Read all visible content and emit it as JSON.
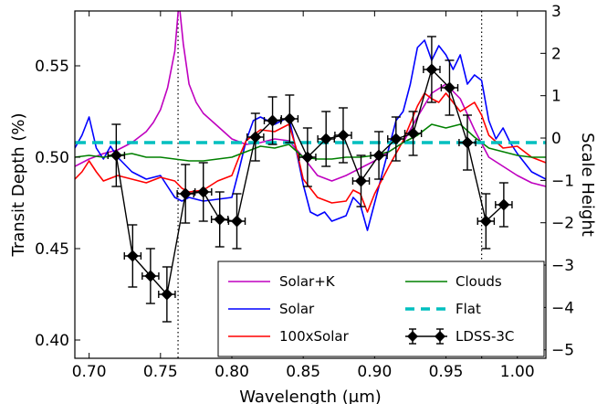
{
  "chart_data": {
    "type": "line",
    "xlabel": "Wavelength (μm)",
    "ylabel": "Transit Depth (%)",
    "ylabel_right": "Scale Height",
    "xlim": [
      0.69,
      1.02
    ],
    "ylim": [
      0.39,
      0.58
    ],
    "y2lim": [
      -5.2,
      3.0
    ],
    "x_ticks": [
      0.7,
      0.75,
      0.8,
      0.85,
      0.9,
      0.95,
      1.0
    ],
    "x_tick_labels": [
      "0.70",
      "0.75",
      "0.80",
      "0.85",
      "0.90",
      "0.95",
      "1.00"
    ],
    "y_ticks": [
      0.4,
      0.45,
      0.5,
      0.55
    ],
    "y_tick_labels": [
      "0.40",
      "0.45",
      "0.50",
      "0.55"
    ],
    "y2_ticks": [
      -5,
      -4,
      -3,
      -2,
      -1,
      0,
      1,
      2,
      3
    ],
    "y2_tick_labels": [
      "−5",
      "−4",
      "−3",
      "−2",
      "−1",
      "0",
      "1",
      "2",
      "3"
    ],
    "vlines": [
      0.7623,
      0.975
    ],
    "grid": false,
    "legend_position": "bottom-right",
    "series": [
      {
        "name": "Solar+K",
        "color": "#bf00bf",
        "style": "solid",
        "x": [
          0.69,
          0.7,
          0.71,
          0.72,
          0.73,
          0.74,
          0.745,
          0.75,
          0.755,
          0.76,
          0.763,
          0.766,
          0.77,
          0.775,
          0.78,
          0.79,
          0.8,
          0.81,
          0.82,
          0.83,
          0.84,
          0.85,
          0.86,
          0.87,
          0.88,
          0.89,
          0.9,
          0.91,
          0.92,
          0.93,
          0.94,
          0.95,
          0.96,
          0.97,
          0.98,
          0.99,
          1.0,
          1.01,
          1.02
        ],
        "y": [
          0.495,
          0.499,
          0.502,
          0.504,
          0.508,
          0.514,
          0.519,
          0.526,
          0.538,
          0.558,
          0.585,
          0.562,
          0.54,
          0.53,
          0.524,
          0.517,
          0.51,
          0.507,
          0.508,
          0.51,
          0.509,
          0.5,
          0.49,
          0.487,
          0.49,
          0.494,
          0.498,
          0.503,
          0.508,
          0.522,
          0.535,
          0.54,
          0.532,
          0.515,
          0.5,
          0.495,
          0.49,
          0.486,
          0.484
        ]
      },
      {
        "name": "Solar",
        "color": "#0000ff",
        "style": "solid",
        "x": [
          0.69,
          0.695,
          0.7,
          0.705,
          0.71,
          0.715,
          0.72,
          0.73,
          0.74,
          0.75,
          0.755,
          0.76,
          0.765,
          0.77,
          0.78,
          0.79,
          0.8,
          0.805,
          0.81,
          0.815,
          0.82,
          0.83,
          0.84,
          0.845,
          0.85,
          0.855,
          0.86,
          0.865,
          0.87,
          0.88,
          0.885,
          0.89,
          0.895,
          0.9,
          0.905,
          0.91,
          0.915,
          0.92,
          0.925,
          0.93,
          0.935,
          0.94,
          0.945,
          0.95,
          0.955,
          0.96,
          0.965,
          0.97,
          0.975,
          0.98,
          0.985,
          0.99,
          0.995,
          1.0,
          1.01,
          1.02
        ],
        "y": [
          0.505,
          0.512,
          0.522,
          0.505,
          0.499,
          0.506,
          0.5,
          0.492,
          0.488,
          0.49,
          0.484,
          0.478,
          0.476,
          0.478,
          0.476,
          0.477,
          0.478,
          0.493,
          0.509,
          0.52,
          0.522,
          0.518,
          0.522,
          0.504,
          0.485,
          0.47,
          0.468,
          0.47,
          0.465,
          0.468,
          0.478,
          0.474,
          0.46,
          0.475,
          0.49,
          0.505,
          0.52,
          0.525,
          0.54,
          0.56,
          0.564,
          0.553,
          0.561,
          0.556,
          0.548,
          0.556,
          0.54,
          0.545,
          0.542,
          0.52,
          0.51,
          0.516,
          0.508,
          0.502,
          0.492,
          0.488
        ]
      },
      {
        "name": "100xSolar",
        "color": "#ff0000",
        "style": "solid",
        "x": [
          0.69,
          0.695,
          0.7,
          0.705,
          0.71,
          0.72,
          0.73,
          0.74,
          0.75,
          0.76,
          0.765,
          0.77,
          0.78,
          0.79,
          0.8,
          0.805,
          0.81,
          0.82,
          0.83,
          0.84,
          0.845,
          0.85,
          0.86,
          0.87,
          0.88,
          0.885,
          0.89,
          0.895,
          0.9,
          0.91,
          0.92,
          0.93,
          0.935,
          0.94,
          0.945,
          0.95,
          0.96,
          0.97,
          0.975,
          0.98,
          0.99,
          1.0,
          1.01,
          1.02
        ],
        "y": [
          0.488,
          0.492,
          0.498,
          0.492,
          0.487,
          0.49,
          0.488,
          0.486,
          0.489,
          0.487,
          0.483,
          0.481,
          0.482,
          0.487,
          0.49,
          0.5,
          0.509,
          0.515,
          0.514,
          0.518,
          0.505,
          0.488,
          0.478,
          0.475,
          0.476,
          0.482,
          0.48,
          0.47,
          0.48,
          0.495,
          0.509,
          0.528,
          0.535,
          0.532,
          0.53,
          0.535,
          0.525,
          0.53,
          0.523,
          0.512,
          0.505,
          0.506,
          0.5,
          0.497
        ]
      },
      {
        "name": "Clouds",
        "color": "#008000",
        "style": "solid",
        "x": [
          0.69,
          0.7,
          0.71,
          0.72,
          0.73,
          0.74,
          0.75,
          0.76,
          0.77,
          0.78,
          0.79,
          0.8,
          0.81,
          0.82,
          0.83,
          0.84,
          0.85,
          0.86,
          0.87,
          0.88,
          0.89,
          0.9,
          0.91,
          0.92,
          0.93,
          0.94,
          0.95,
          0.96,
          0.97,
          0.98,
          0.99,
          1.0,
          1.01,
          1.02
        ],
        "y": [
          0.5,
          0.501,
          0.5,
          0.501,
          0.502,
          0.5,
          0.5,
          0.499,
          0.498,
          0.498,
          0.499,
          0.5,
          0.503,
          0.506,
          0.505,
          0.507,
          0.5,
          0.499,
          0.499,
          0.5,
          0.5,
          0.501,
          0.503,
          0.508,
          0.512,
          0.518,
          0.516,
          0.518,
          0.511,
          0.505,
          0.503,
          0.501,
          0.5,
          0.5
        ]
      },
      {
        "name": "Flat",
        "color": "#00bfbf",
        "style": "dashed",
        "x": [
          0.69,
          1.02
        ],
        "y": [
          0.508,
          0.508
        ]
      },
      {
        "name": "LDSS-3C",
        "color": "#000000",
        "style": "errorbar",
        "x": [
          0.719,
          0.7305,
          0.743,
          0.7545,
          0.7675,
          0.78,
          0.7915,
          0.8035,
          0.8165,
          0.8285,
          0.8405,
          0.853,
          0.866,
          0.878,
          0.8905,
          0.903,
          0.915,
          0.927,
          0.94,
          0.9525,
          0.965,
          0.978,
          0.9905
        ],
        "y": [
          0.501,
          0.446,
          0.435,
          0.425,
          0.48,
          0.481,
          0.466,
          0.465,
          0.511,
          0.52,
          0.521,
          0.5,
          0.51,
          0.512,
          0.487,
          0.501,
          0.51,
          0.513,
          0.548,
          0.538,
          0.508,
          0.465,
          0.474
        ],
        "xerr": 0.0058,
        "yerr": [
          0.017,
          0.017,
          0.015,
          0.015,
          0.016,
          0.016,
          0.015,
          0.015,
          0.013,
          0.013,
          0.013,
          0.016,
          0.015,
          0.015,
          0.014,
          0.013,
          0.012,
          0.012,
          0.018,
          0.015,
          0.015,
          0.015,
          0.012
        ]
      }
    ]
  }
}
